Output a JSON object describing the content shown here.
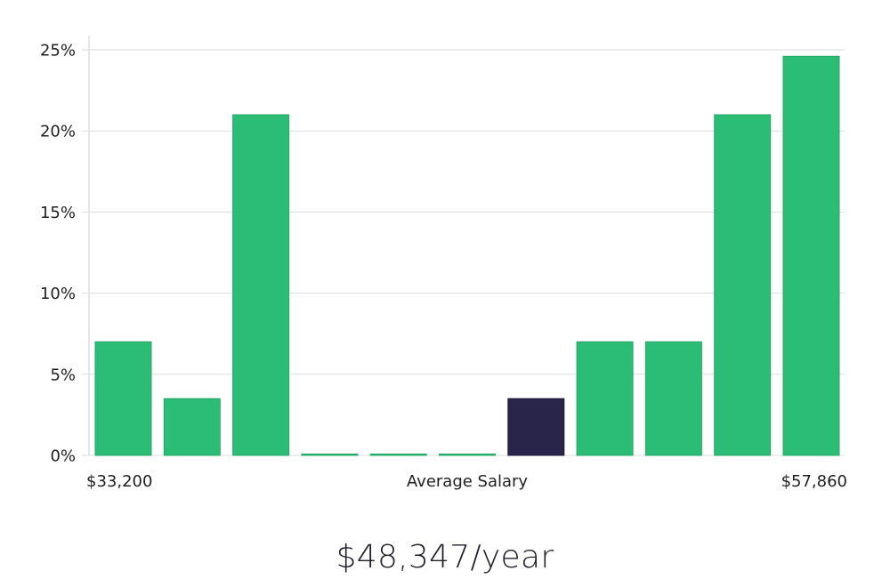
{
  "chart_data": {
    "type": "bar",
    "values": [
      7,
      3.5,
      21,
      0,
      0,
      0,
      3.5,
      7,
      7,
      21,
      24.6
    ],
    "highlight_index": 6,
    "xlabel": "Average Salary",
    "x_range_labels": {
      "min": "$33,200",
      "max": "$57,860"
    },
    "ylim": [
      0,
      25
    ],
    "yticks": [
      {
        "value": 0,
        "label": "0%"
      },
      {
        "value": 5,
        "label": "5%"
      },
      {
        "value": 10,
        "label": "10%"
      },
      {
        "value": 15,
        "label": "15%"
      },
      {
        "value": 20,
        "label": "20%"
      },
      {
        "value": 25,
        "label": "25%"
      }
    ],
    "grid": true,
    "colors": {
      "bar": "#2bbd76",
      "bar_stroke": "#25a866",
      "highlight": "#29254a",
      "highlight_stroke": "#1c1838"
    }
  },
  "salary_label": "$48,347/year"
}
